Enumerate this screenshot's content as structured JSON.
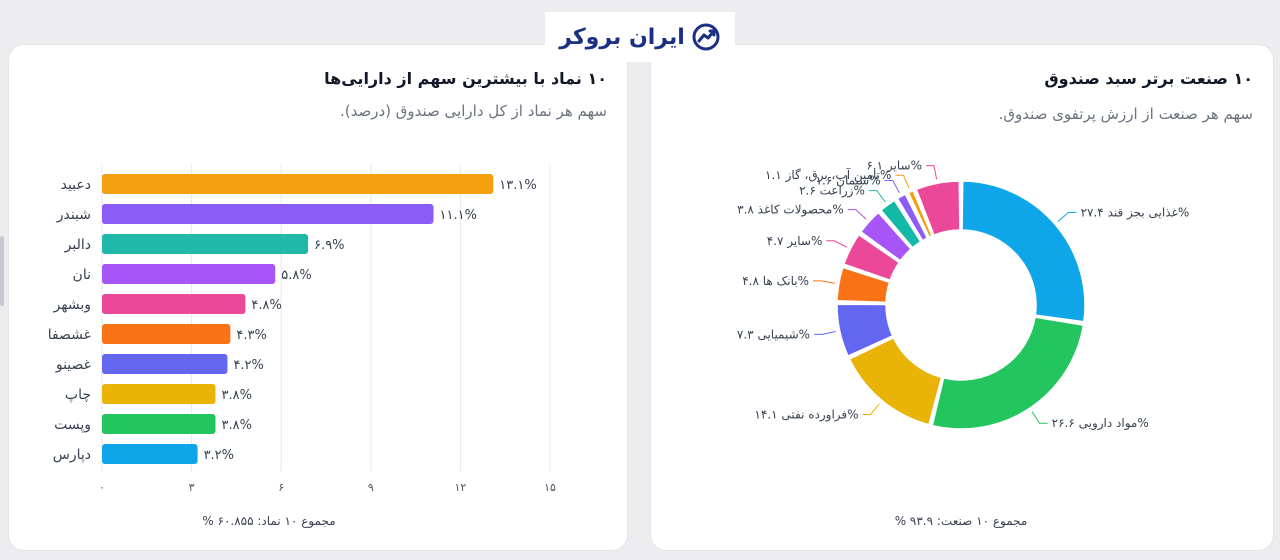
{
  "brand": {
    "name": "ایران بروکر",
    "color": "#1b2f86"
  },
  "left_panel": {
    "title": "۱۰ نماد با بیشترین سهم از دارایی‌ها",
    "subtitle": "سهم هر نماد از کل دارایی صندوق (درصد).",
    "footer": "مجموع ۱۰ نماد: ۶۰.۸۵۵ %"
  },
  "right_panel": {
    "title": "۱۰ صنعت برتر سبد صندوق",
    "subtitle": "سهم هر صنعت از ارزش پرتفوی صندوق.",
    "footer": "مجموع ۱۰ صنعت: ۹۳.۹ %"
  },
  "chart_data": [
    {
      "type": "bar",
      "orientation": "horizontal",
      "title": "۱۰ نماد با بیشترین سهم از دارایی‌ها",
      "subtitle": "سهم هر نماد از کل دارایی صندوق (درصد).",
      "categories": [
        "دعبید",
        "شبندر",
        "دالبر",
        "نان",
        "وبشهر",
        "غشصفا",
        "غصینو",
        "چاپ",
        "وپست",
        "دپارس"
      ],
      "values": [
        13.1,
        11.1,
        6.9,
        5.8,
        4.8,
        4.3,
        4.2,
        3.8,
        3.8,
        3.2
      ],
      "value_labels": [
        "۱۳.۱%",
        "۱۱.۱%",
        "۶.۹%",
        "۵.۸%",
        "۴.۸%",
        "۴.۳%",
        "۴.۲%",
        "۳.۸%",
        "۳.۸%",
        "۳.۲%"
      ],
      "colors": [
        "#f5a10f",
        "#8b5cf6",
        "#20b8a6",
        "#a855f7",
        "#ec4899",
        "#f97316",
        "#6366f1",
        "#eab308",
        "#22c55e",
        "#0ea5e9"
      ],
      "xlim": [
        0,
        15
      ],
      "xticks": [
        0,
        3,
        6,
        9,
        12,
        15
      ],
      "xtick_labels": [
        "۰",
        "۳",
        "۶",
        "۹",
        "۱۲",
        "۱۵"
      ],
      "grid": true
    },
    {
      "type": "pie",
      "donut": true,
      "title": "۱۰ صنعت برتر سبد صندوق",
      "subtitle": "سهم هر صنعت از ارزش پرتفوی صندوق.",
      "slices": [
        {
          "label": "غذایی بجز قند",
          "value": 27.4,
          "text": "غذایی بجز قند  ۲۷.۴%",
          "color": "#0ea5e9"
        },
        {
          "label": "مواد دارویی",
          "value": 26.6,
          "text": "مواد دارویی  ۲۶.۶%",
          "color": "#22c55e"
        },
        {
          "label": "فراورده نفتی",
          "value": 14.1,
          "text": "فراورده نفتی  ۱۴.۱%",
          "color": "#eab308"
        },
        {
          "label": "شیمیایی",
          "value": 7.3,
          "text": "شیمیایی  ۷.۳%",
          "color": "#6366f1"
        },
        {
          "label": "بانک ها",
          "value": 4.8,
          "text": "بانک ها  ۴.۸%",
          "color": "#f97316"
        },
        {
          "label": "سایر",
          "value": 4.7,
          "text": "سایر  ۴.۷%",
          "color": "#ec4899"
        },
        {
          "label": "محصولات کاغذ",
          "value": 3.8,
          "text": "محصولات کاغذ  ۳.۸%",
          "color": "#a855f7"
        },
        {
          "label": "زراعت",
          "value": 2.6,
          "text": "زراعت  ۲.۶%",
          "color": "#14b8a6"
        },
        {
          "label": "سیمان",
          "value": 1.6,
          "text": "سیمان  ۱.۶%",
          "color": "#8b5cf6"
        },
        {
          "label": "تامین آب، برق، گاز",
          "value": 1.1,
          "text": "تامین آب، برق، گاز  ۱.۱%",
          "color": "#f59e0b"
        },
        {
          "label": "سایر",
          "value": 6.1,
          "text": "سایر  ۶.۱%",
          "color": "#ec4899"
        }
      ]
    }
  ]
}
